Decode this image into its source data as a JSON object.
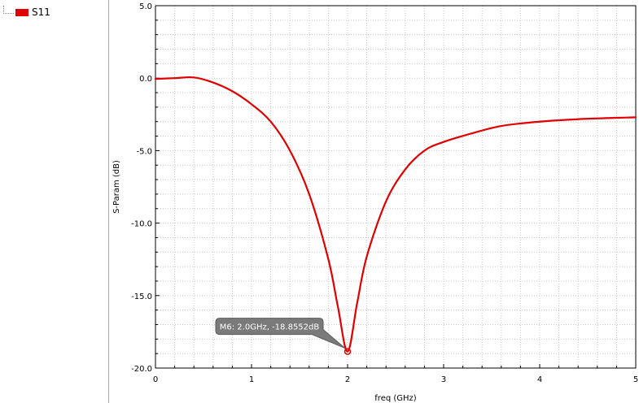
{
  "legend": {
    "items": [
      {
        "label": "S11",
        "color": "#e00000"
      }
    ]
  },
  "chart_data": {
    "type": "line",
    "title": "",
    "xlabel": "freq (GHz)",
    "ylabel": "S-Param (dB)",
    "xlim": [
      0,
      5
    ],
    "ylim": [
      -20,
      5
    ],
    "x_ticks": [
      "0",
      "1",
      "2",
      "3",
      "4",
      "5"
    ],
    "y_ticks": [
      "5.0",
      "0.0",
      "-5.0",
      "-10.0",
      "-15.0",
      "-20.0"
    ],
    "grid": true,
    "series": [
      {
        "name": "S11",
        "color": "#e00000",
        "x": [
          0,
          0.2,
          0.4,
          0.6,
          0.8,
          1.0,
          1.2,
          1.4,
          1.6,
          1.8,
          1.9,
          2.0,
          2.1,
          2.2,
          2.4,
          2.6,
          2.8,
          3.0,
          3.3,
          3.6,
          4.0,
          4.5,
          5.0
        ],
        "y": [
          -0.05,
          0.0,
          0.05,
          -0.3,
          -0.9,
          -1.8,
          -3.0,
          -5.0,
          -8.0,
          -12.5,
          -15.8,
          -18.86,
          -15.5,
          -12.3,
          -8.5,
          -6.3,
          -5.0,
          -4.4,
          -3.8,
          -3.3,
          -3.0,
          -2.8,
          -2.7
        ]
      }
    ],
    "marker": {
      "text": "M6: 2.0GHz, -18.8552dB",
      "x": 2.0,
      "y": -18.8552
    }
  }
}
